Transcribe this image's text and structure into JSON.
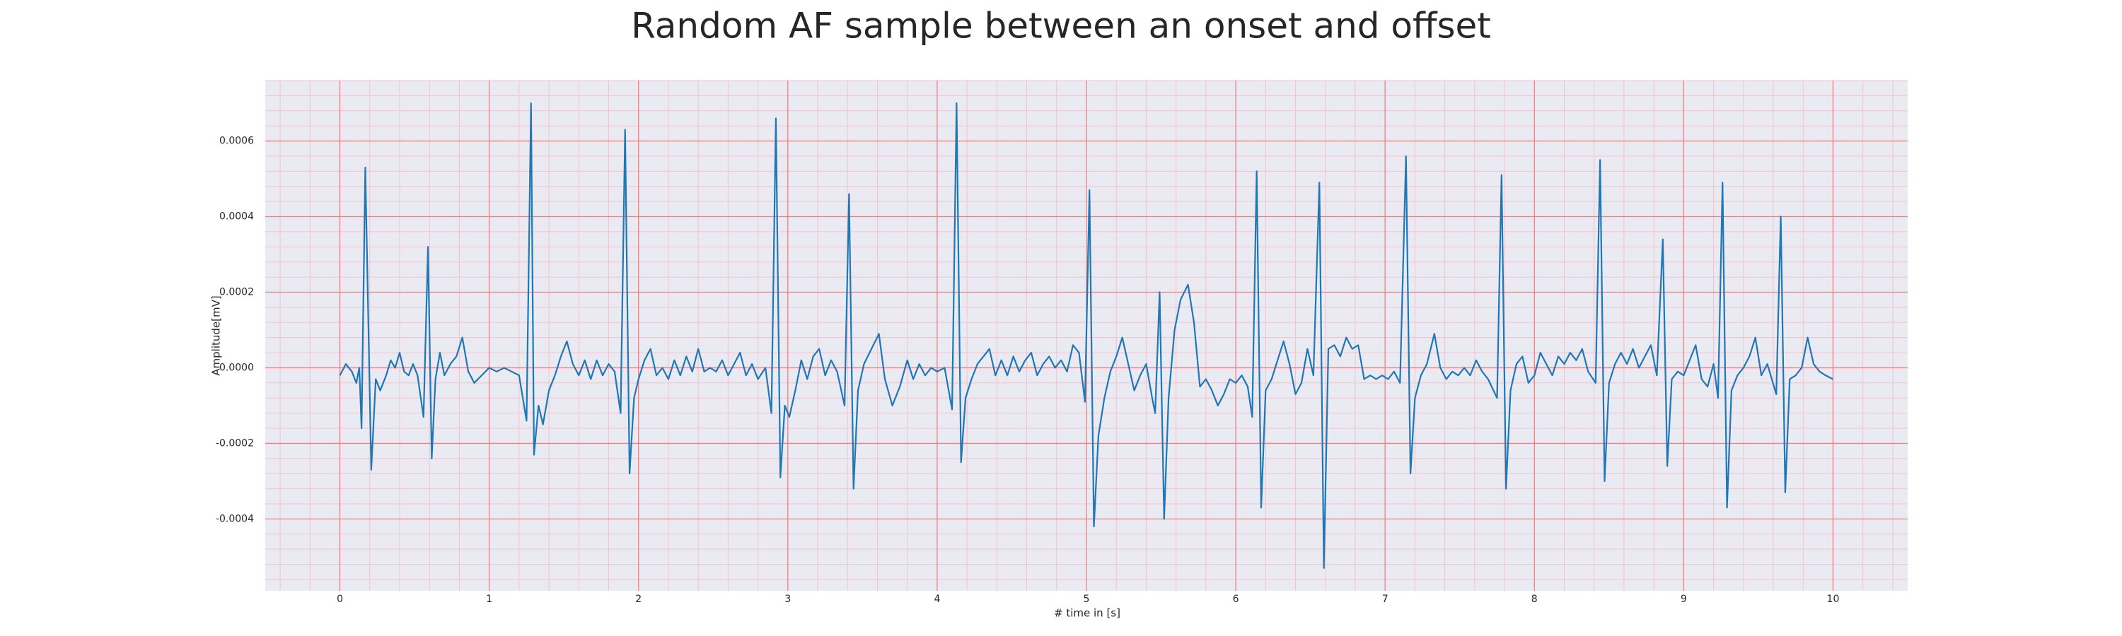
{
  "chart_data": {
    "type": "line",
    "title": "Random AF sample between an onset and offset",
    "x_label": "# time in [s]",
    "y_label": "Amplitude[mV]",
    "color": "#1f77b4",
    "grid": true,
    "grid_color": "#f08080",
    "minor_grid": true,
    "minor_grid_color": "#f4c2cc",
    "background": "#eaeaf2",
    "xlim": [
      -0.5,
      10.5
    ],
    "ylim": [
      -0.00059,
      0.00076
    ],
    "xticks": [
      0,
      1,
      2,
      3,
      4,
      5,
      6,
      7,
      8,
      9,
      10
    ],
    "yticks": [
      {
        "value": -0.0004,
        "label": "-0.0004"
      },
      {
        "value": -0.0002,
        "label": "-0.0002"
      },
      {
        "value": 0,
        "label": "0.0000"
      },
      {
        "value": 0.0002,
        "label": "0.0002"
      },
      {
        "value": 0.0004,
        "label": "0.0004"
      },
      {
        "value": 0.0006,
        "label": "0.0006"
      }
    ],
    "x": [
      0.0,
      0.04,
      0.08,
      0.11,
      0.13,
      0.145,
      0.17,
      0.21,
      0.24,
      0.27,
      0.31,
      0.34,
      0.37,
      0.4,
      0.43,
      0.46,
      0.49,
      0.52,
      0.56,
      0.59,
      0.615,
      0.64,
      0.67,
      0.7,
      0.74,
      0.78,
      0.82,
      0.86,
      0.9,
      0.95,
      1.0,
      1.05,
      1.1,
      1.15,
      1.2,
      1.25,
      1.28,
      1.3,
      1.33,
      1.36,
      1.4,
      1.44,
      1.48,
      1.52,
      1.56,
      1.6,
      1.64,
      1.68,
      1.72,
      1.76,
      1.8,
      1.84,
      1.88,
      1.91,
      1.94,
      1.97,
      2.0,
      2.04,
      2.08,
      2.12,
      2.16,
      2.2,
      2.24,
      2.28,
      2.32,
      2.36,
      2.4,
      2.44,
      2.48,
      2.52,
      2.56,
      2.6,
      2.64,
      2.68,
      2.72,
      2.76,
      2.8,
      2.85,
      2.89,
      2.92,
      2.95,
      2.98,
      3.01,
      3.05,
      3.09,
      3.13,
      3.17,
      3.21,
      3.25,
      3.29,
      3.33,
      3.38,
      3.41,
      3.44,
      3.47,
      3.51,
      3.56,
      3.61,
      3.65,
      3.7,
      3.75,
      3.8,
      3.84,
      3.88,
      3.92,
      3.96,
      4.0,
      4.05,
      4.1,
      4.13,
      4.16,
      4.19,
      4.23,
      4.27,
      4.31,
      4.35,
      4.39,
      4.43,
      4.47,
      4.51,
      4.55,
      4.59,
      4.63,
      4.67,
      4.71,
      4.75,
      4.79,
      4.83,
      4.87,
      4.91,
      4.95,
      4.99,
      5.02,
      5.05,
      5.08,
      5.12,
      5.16,
      5.2,
      5.24,
      5.28,
      5.32,
      5.36,
      5.4,
      5.44,
      5.46,
      5.49,
      5.52,
      5.55,
      5.59,
      5.63,
      5.68,
      5.72,
      5.76,
      5.8,
      5.84,
      5.88,
      5.92,
      5.96,
      6.0,
      6.04,
      6.08,
      6.11,
      6.14,
      6.17,
      6.2,
      6.24,
      6.28,
      6.32,
      6.36,
      6.4,
      6.44,
      6.48,
      6.52,
      6.56,
      6.59,
      6.62,
      6.66,
      6.7,
      6.74,
      6.78,
      6.82,
      6.86,
      6.9,
      6.94,
      6.98,
      7.02,
      7.06,
      7.1,
      7.14,
      7.17,
      7.2,
      7.24,
      7.28,
      7.33,
      7.37,
      7.41,
      7.45,
      7.49,
      7.53,
      7.57,
      7.61,
      7.65,
      7.69,
      7.75,
      7.78,
      7.81,
      7.84,
      7.88,
      7.92,
      7.96,
      8.0,
      8.04,
      8.08,
      8.12,
      8.16,
      8.2,
      8.24,
      8.28,
      8.32,
      8.36,
      8.41,
      8.44,
      8.47,
      8.5,
      8.54,
      8.58,
      8.62,
      8.66,
      8.7,
      8.74,
      8.78,
      8.82,
      8.86,
      8.89,
      8.92,
      8.96,
      9.0,
      9.04,
      9.08,
      9.12,
      9.16,
      9.2,
      9.23,
      9.26,
      9.29,
      9.32,
      9.36,
      9.4,
      9.44,
      9.48,
      9.52,
      9.56,
      9.62,
      9.65,
      9.68,
      9.71,
      9.75,
      9.79,
      9.83,
      9.87,
      9.91,
      9.95,
      10.0
    ],
    "values": [
      -2e-05,
      1e-05,
      -1e-05,
      -4e-05,
      0.0,
      -0.00016,
      0.00053,
      -0.00027,
      -3e-05,
      -6e-05,
      -2e-05,
      2e-05,
      0.0,
      4e-05,
      -1e-05,
      -2e-05,
      1e-05,
      -2e-05,
      -0.00013,
      0.00032,
      -0.00024,
      -3e-05,
      4e-05,
      -2e-05,
      1e-05,
      3e-05,
      8e-05,
      -1e-05,
      -4e-05,
      -2e-05,
      0.0,
      -1e-05,
      0.0,
      -1e-05,
      -2e-05,
      -0.00014,
      0.0007,
      -0.00023,
      -0.0001,
      -0.00015,
      -6e-05,
      -2e-05,
      3e-05,
      7e-05,
      1e-05,
      -2e-05,
      2e-05,
      -3e-05,
      2e-05,
      -2e-05,
      1e-05,
      -1e-05,
      -0.00012,
      0.00063,
      -0.00028,
      -8e-05,
      -3e-05,
      2e-05,
      5e-05,
      -2e-05,
      0.0,
      -3e-05,
      2e-05,
      -2e-05,
      3e-05,
      -1e-05,
      5e-05,
      -1e-05,
      0.0,
      -1e-05,
      2e-05,
      -2e-05,
      1e-05,
      4e-05,
      -2e-05,
      1e-05,
      -3e-05,
      0.0,
      -0.00012,
      0.00066,
      -0.00029,
      -0.0001,
      -0.00013,
      -6e-05,
      2e-05,
      -3e-05,
      3e-05,
      5e-05,
      -2e-05,
      2e-05,
      -1e-05,
      -0.0001,
      0.00046,
      -0.00032,
      -6e-05,
      1e-05,
      5e-05,
      9e-05,
      -3e-05,
      -0.0001,
      -5e-05,
      2e-05,
      -3e-05,
      1e-05,
      -2e-05,
      0.0,
      -1e-05,
      0.0,
      -0.00011,
      0.0007,
      -0.00025,
      -8e-05,
      -3e-05,
      1e-05,
      3e-05,
      5e-05,
      -2e-05,
      2e-05,
      -2e-05,
      3e-05,
      -1e-05,
      2e-05,
      4e-05,
      -2e-05,
      1e-05,
      3e-05,
      0.0,
      2e-05,
      -1e-05,
      6e-05,
      4e-05,
      -9e-05,
      0.00047,
      -0.00042,
      -0.00018,
      -8e-05,
      -1e-05,
      3e-05,
      8e-05,
      1e-05,
      -6e-05,
      -2e-05,
      1e-05,
      -8e-05,
      -0.00012,
      0.0002,
      -0.0004,
      -8e-05,
      0.0001,
      0.00018,
      0.00022,
      0.00012,
      -5e-05,
      -3e-05,
      -6e-05,
      -0.0001,
      -7e-05,
      -3e-05,
      -4e-05,
      -2e-05,
      -5e-05,
      -0.00013,
      0.00052,
      -0.00037,
      -6e-05,
      -3e-05,
      2e-05,
      7e-05,
      1e-05,
      -7e-05,
      -4e-05,
      5e-05,
      -2e-05,
      0.00049,
      -0.00053,
      5e-05,
      6e-05,
      3e-05,
      8e-05,
      5e-05,
      6e-05,
      -3e-05,
      -2e-05,
      -3e-05,
      -2e-05,
      -3e-05,
      -1e-05,
      -4e-05,
      0.00056,
      -0.00028,
      -8e-05,
      -2e-05,
      1e-05,
      9e-05,
      0.0,
      -3e-05,
      -1e-05,
      -2e-05,
      0.0,
      -2e-05,
      2e-05,
      -1e-05,
      -3e-05,
      -8e-05,
      0.00051,
      -0.00032,
      -6e-05,
      1e-05,
      3e-05,
      -4e-05,
      -2e-05,
      4e-05,
      1e-05,
      -2e-05,
      3e-05,
      1e-05,
      4e-05,
      2e-05,
      5e-05,
      -1e-05,
      -4e-05,
      0.00055,
      -0.0003,
      -4e-05,
      1e-05,
      4e-05,
      1e-05,
      5e-05,
      0.0,
      3e-05,
      6e-05,
      -2e-05,
      0.00034,
      -0.00026,
      -3e-05,
      -1e-05,
      -2e-05,
      2e-05,
      6e-05,
      -3e-05,
      -5e-05,
      1e-05,
      -8e-05,
      0.00049,
      -0.00037,
      -6e-05,
      -2e-05,
      0.0,
      3e-05,
      8e-05,
      -2e-05,
      1e-05,
      -7e-05,
      0.0004,
      -0.00033,
      -3e-05,
      -2e-05,
      0.0,
      8e-05,
      1e-05,
      -1e-05,
      -2e-05,
      -3e-05
    ]
  }
}
